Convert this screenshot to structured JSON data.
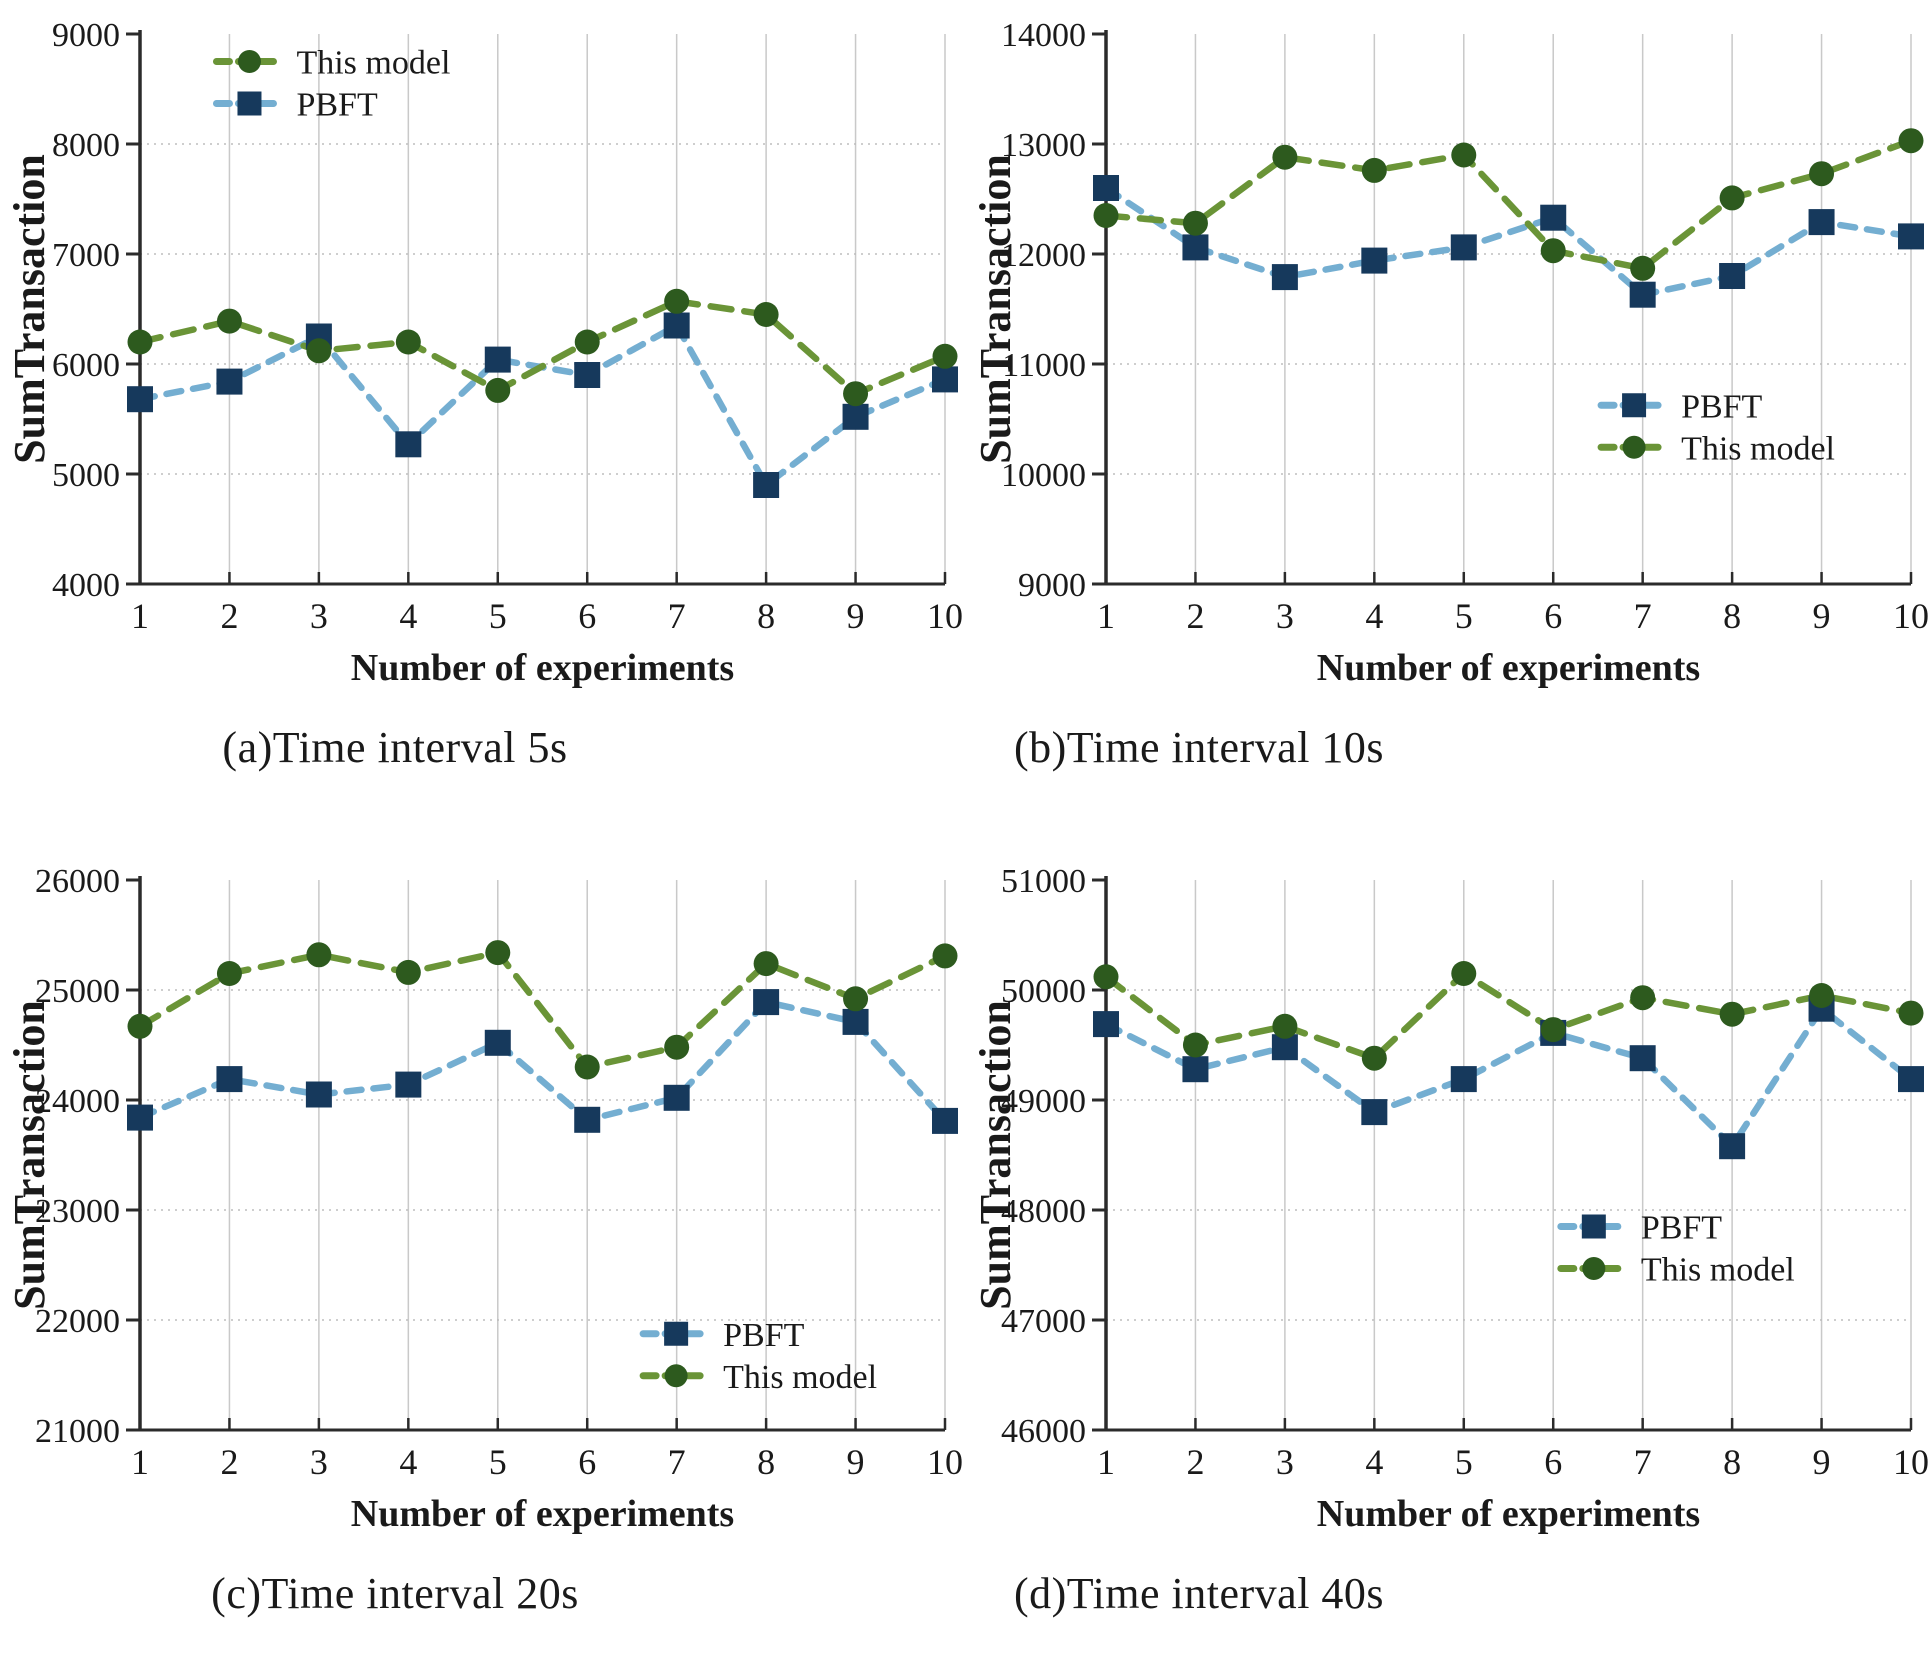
{
  "figure": {
    "background": "#ffffff",
    "x_axis_label": "Number of experiments",
    "y_axis_label": "SumTransaction"
  },
  "colors": {
    "this_model_line": "#6a9437",
    "this_model_marker": "#2d5a1e",
    "pbft_line": "#74aed1",
    "pbft_marker": "#16395c",
    "grid_vertical": "#c9c9c9",
    "grid_horizontal": "#bdbdbd",
    "axis": "#2b2b2b",
    "text": "#1a1a1a"
  },
  "series_meta": {
    "this_model": {
      "label": "This model",
      "marker": "circle"
    },
    "pbft": {
      "label": "PBFT",
      "marker": "square"
    }
  },
  "chart_data": [
    {
      "id": "a",
      "type": "line",
      "caption": "(a)Time interval 5s",
      "xlabel": "Number of experiments",
      "ylabel": "SumTransaction",
      "x": [
        1,
        2,
        3,
        4,
        5,
        6,
        7,
        8,
        9,
        10
      ],
      "ylim": [
        4000,
        9000
      ],
      "ytick_step": 1000,
      "grid": true,
      "legend": {
        "x": 0.095,
        "y": 0.05,
        "order": [
          "this_model",
          "pbft"
        ]
      },
      "series": [
        {
          "key": "this_model",
          "name": "This model",
          "values": [
            6200,
            6390,
            6120,
            6200,
            5760,
            6200,
            6570,
            6450,
            5730,
            6070
          ]
        },
        {
          "key": "pbft",
          "name": "PBFT",
          "values": [
            5680,
            5840,
            6250,
            5270,
            6040,
            5900,
            6350,
            4900,
            5520,
            5860
          ]
        }
      ]
    },
    {
      "id": "b",
      "type": "line",
      "caption": "(b)Time interval 10s",
      "xlabel": "Number of experiments",
      "ylabel": "SumTransaction",
      "x": [
        1,
        2,
        3,
        4,
        5,
        6,
        7,
        8,
        9,
        10
      ],
      "ylim": [
        9000,
        14000
      ],
      "ytick_step": 1000,
      "grid": true,
      "legend": {
        "x": 0.615,
        "y": 0.675,
        "order": [
          "pbft",
          "this_model"
        ]
      },
      "series": [
        {
          "key": "pbft",
          "name": "PBFT",
          "values": [
            12600,
            12060,
            11790,
            11940,
            12060,
            12330,
            11630,
            11800,
            12290,
            12160
          ]
        },
        {
          "key": "this_model",
          "name": "This model",
          "values": [
            12350,
            12280,
            12880,
            12760,
            12900,
            12030,
            11870,
            12510,
            12730,
            13030
          ]
        }
      ]
    },
    {
      "id": "c",
      "type": "line",
      "caption": "(c)Time interval 20s",
      "xlabel": "Number of experiments",
      "ylabel": "SumTransaction",
      "x": [
        1,
        2,
        3,
        4,
        5,
        6,
        7,
        8,
        9,
        10
      ],
      "ylim": [
        21000,
        26000
      ],
      "ytick_step": 1000,
      "grid": true,
      "legend": {
        "x": 0.625,
        "y": 0.825,
        "order": [
          "pbft",
          "this_model"
        ]
      },
      "series": [
        {
          "key": "pbft",
          "name": "PBFT",
          "values": [
            23840,
            24190,
            24050,
            24140,
            24520,
            23820,
            24020,
            24890,
            24710,
            23810
          ]
        },
        {
          "key": "this_model",
          "name": "This model",
          "values": [
            24670,
            25150,
            25320,
            25160,
            25340,
            24300,
            24480,
            25240,
            24920,
            25310
          ]
        }
      ]
    },
    {
      "id": "d",
      "type": "line",
      "caption": "(d)Time interval 40s",
      "xlabel": "Number of experiments",
      "ylabel": "SumTransaction",
      "x": [
        1,
        2,
        3,
        4,
        5,
        6,
        7,
        8,
        9,
        10
      ],
      "ylim": [
        46000,
        51000
      ],
      "ytick_step": 1000,
      "grid": true,
      "legend": {
        "x": 0.565,
        "y": 0.63,
        "order": [
          "pbft",
          "this_model"
        ]
      },
      "series": [
        {
          "key": "pbft",
          "name": "PBFT",
          "values": [
            49690,
            49280,
            49480,
            48890,
            49190,
            49610,
            49380,
            48580,
            49830,
            49190
          ]
        },
        {
          "key": "this_model",
          "name": "This model",
          "values": [
            50120,
            49500,
            49670,
            49380,
            50150,
            49640,
            49930,
            49780,
            49950,
            49790
          ]
        }
      ]
    }
  ]
}
